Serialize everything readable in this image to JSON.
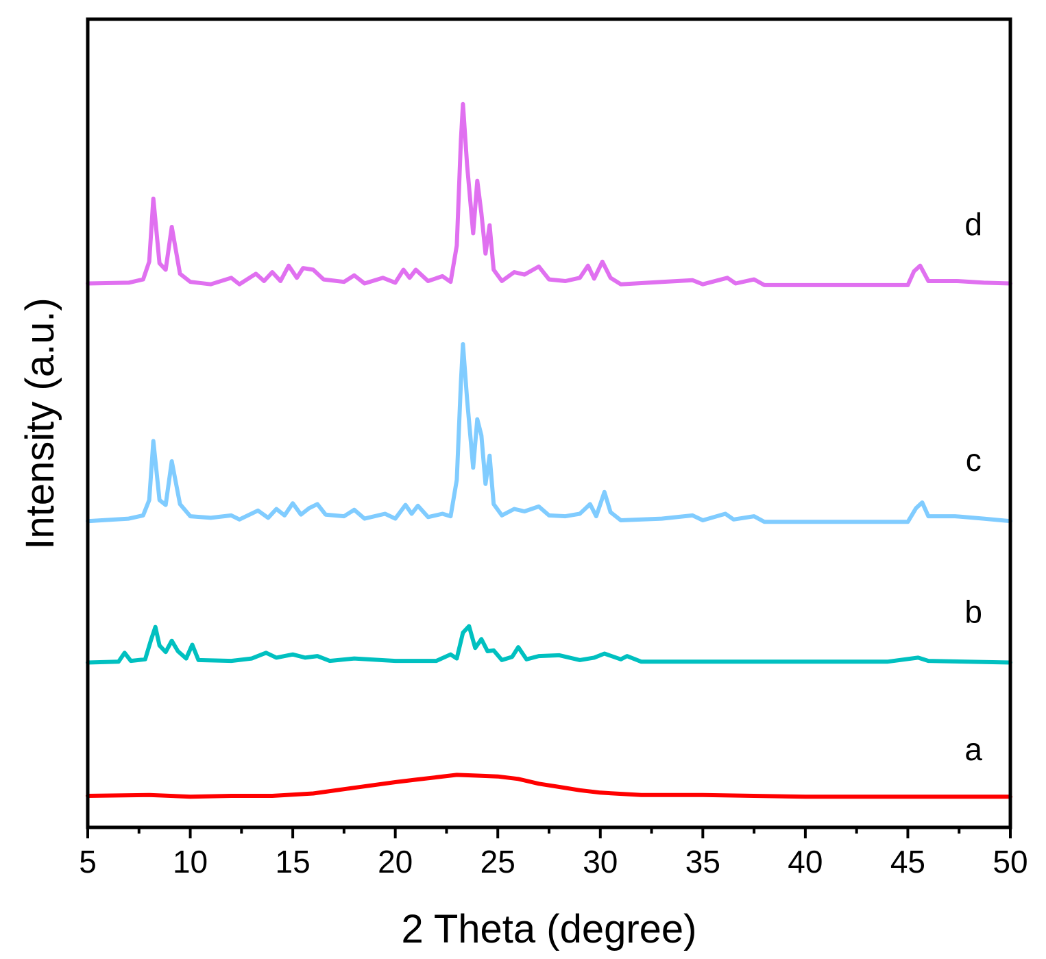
{
  "chart_data": {
    "type": "line",
    "xlabel": "2 Theta (degree)",
    "ylabel": "Intensity (a.u.)",
    "xlim": [
      5,
      50
    ],
    "ylim": [
      0,
      100
    ],
    "x_major_ticks": [
      5,
      10,
      15,
      20,
      25,
      30,
      35,
      40,
      45,
      50
    ],
    "x_tick_labels": [
      "5",
      "10",
      "15",
      "20",
      "25",
      "30",
      "35",
      "40",
      "45",
      "50"
    ],
    "x_minor_ticks": [
      7.5,
      12.5,
      17.5,
      22.5,
      27.5,
      32.5,
      37.5,
      42.5,
      47.5
    ],
    "grid": false,
    "y_tick_labels_shown": false,
    "series": [
      {
        "name": "a",
        "color": "#ff0000",
        "label_x": 48.2,
        "label_y": 8.3,
        "points": [
          [
            5,
            3.9
          ],
          [
            8,
            4.0
          ],
          [
            10,
            3.8
          ],
          [
            12,
            3.9
          ],
          [
            14,
            3.9
          ],
          [
            16,
            4.2
          ],
          [
            18,
            4.9
          ],
          [
            20,
            5.6
          ],
          [
            21,
            5.9
          ],
          [
            22,
            6.2
          ],
          [
            23,
            6.5
          ],
          [
            24,
            6.4
          ],
          [
            25,
            6.3
          ],
          [
            26,
            6.0
          ],
          [
            27,
            5.4
          ],
          [
            28,
            5.0
          ],
          [
            29,
            4.6
          ],
          [
            30,
            4.3
          ],
          [
            32,
            4.0
          ],
          [
            35,
            4.0
          ],
          [
            40,
            3.8
          ],
          [
            45,
            3.8
          ],
          [
            50,
            3.8
          ]
        ]
      },
      {
        "name": "b",
        "color": "#00c0c0",
        "label_x": 48.2,
        "label_y": 25.3,
        "points": [
          [
            5,
            20.4
          ],
          [
            6.5,
            20.5
          ],
          [
            6.8,
            21.6
          ],
          [
            7.1,
            20.6
          ],
          [
            7.8,
            20.8
          ],
          [
            8.1,
            23.3
          ],
          [
            8.3,
            24.8
          ],
          [
            8.5,
            22.5
          ],
          [
            8.8,
            21.7
          ],
          [
            9.1,
            23.1
          ],
          [
            9.4,
            21.8
          ],
          [
            9.8,
            20.9
          ],
          [
            10.1,
            22.6
          ],
          [
            10.4,
            20.7
          ],
          [
            12,
            20.6
          ],
          [
            13,
            20.9
          ],
          [
            13.7,
            21.6
          ],
          [
            14.2,
            21.0
          ],
          [
            15,
            21.4
          ],
          [
            15.6,
            21.0
          ],
          [
            16.2,
            21.2
          ],
          [
            16.8,
            20.6
          ],
          [
            18,
            20.9
          ],
          [
            20,
            20.6
          ],
          [
            22,
            20.6
          ],
          [
            22.7,
            21.4
          ],
          [
            23.0,
            20.9
          ],
          [
            23.3,
            24.1
          ],
          [
            23.6,
            24.9
          ],
          [
            23.9,
            22.2
          ],
          [
            24.2,
            23.3
          ],
          [
            24.5,
            21.8
          ],
          [
            24.8,
            21.9
          ],
          [
            25.2,
            20.7
          ],
          [
            25.7,
            21.1
          ],
          [
            26.0,
            22.3
          ],
          [
            26.4,
            20.8
          ],
          [
            27,
            21.2
          ],
          [
            28,
            21.3
          ],
          [
            29,
            20.7
          ],
          [
            29.7,
            21.0
          ],
          [
            30.2,
            21.5
          ],
          [
            31,
            20.8
          ],
          [
            31.3,
            21.2
          ],
          [
            32,
            20.5
          ],
          [
            40,
            20.5
          ],
          [
            44,
            20.5
          ],
          [
            45.5,
            21.0
          ],
          [
            46,
            20.6
          ],
          [
            50,
            20.4
          ]
        ]
      },
      {
        "name": "c",
        "color": "#80ccff",
        "label_x": 48.2,
        "label_y": 44.1,
        "points": [
          [
            5,
            37.9
          ],
          [
            7,
            38.2
          ],
          [
            7.7,
            38.6
          ],
          [
            8.0,
            40.5
          ],
          [
            8.2,
            47.8
          ],
          [
            8.5,
            40.5
          ],
          [
            8.8,
            39.9
          ],
          [
            9.1,
            45.3
          ],
          [
            9.5,
            40.0
          ],
          [
            10,
            38.5
          ],
          [
            11,
            38.3
          ],
          [
            12,
            38.6
          ],
          [
            12.4,
            38.1
          ],
          [
            13.3,
            39.2
          ],
          [
            13.8,
            38.3
          ],
          [
            14.2,
            39.4
          ],
          [
            14.6,
            38.6
          ],
          [
            15.0,
            40.1
          ],
          [
            15.4,
            38.7
          ],
          [
            15.8,
            39.5
          ],
          [
            16.2,
            40.0
          ],
          [
            16.6,
            38.7
          ],
          [
            17.5,
            38.5
          ],
          [
            18.0,
            39.3
          ],
          [
            18.5,
            38.2
          ],
          [
            19.5,
            38.8
          ],
          [
            20.0,
            38.2
          ],
          [
            20.5,
            39.9
          ],
          [
            20.8,
            38.8
          ],
          [
            21.1,
            39.8
          ],
          [
            21.6,
            38.4
          ],
          [
            22.3,
            38.8
          ],
          [
            22.7,
            38.5
          ],
          [
            23.0,
            43.0
          ],
          [
            23.2,
            55.0
          ],
          [
            23.3,
            59.8
          ],
          [
            23.5,
            53.0
          ],
          [
            23.8,
            44.5
          ],
          [
            24.0,
            50.5
          ],
          [
            24.2,
            48.5
          ],
          [
            24.4,
            42.5
          ],
          [
            24.6,
            46.0
          ],
          [
            24.8,
            40.0
          ],
          [
            25.2,
            38.6
          ],
          [
            25.8,
            39.4
          ],
          [
            26.3,
            39.1
          ],
          [
            27.0,
            39.7
          ],
          [
            27.5,
            38.6
          ],
          [
            28.3,
            38.5
          ],
          [
            29.0,
            38.8
          ],
          [
            29.5,
            40.0
          ],
          [
            29.8,
            38.5
          ],
          [
            30.2,
            41.5
          ],
          [
            30.5,
            39.0
          ],
          [
            31,
            38.0
          ],
          [
            33,
            38.2
          ],
          [
            34.5,
            38.6
          ],
          [
            35,
            38.0
          ],
          [
            36.1,
            38.8
          ],
          [
            36.5,
            38.1
          ],
          [
            37.5,
            38.5
          ],
          [
            38,
            37.8
          ],
          [
            45,
            37.8
          ],
          [
            45.4,
            39.5
          ],
          [
            45.7,
            40.2
          ],
          [
            46,
            38.5
          ],
          [
            47.3,
            38.5
          ],
          [
            48.7,
            38.2
          ],
          [
            50,
            37.9
          ]
        ]
      },
      {
        "name": "d",
        "color": "#e070f0",
        "label_x": 48.2,
        "label_y": 73.3,
        "points": [
          [
            5,
            67.3
          ],
          [
            7,
            67.4
          ],
          [
            7.7,
            67.8
          ],
          [
            8.0,
            70.0
          ],
          [
            8.2,
            77.8
          ],
          [
            8.5,
            69.8
          ],
          [
            8.8,
            69.0
          ],
          [
            9.1,
            74.3
          ],
          [
            9.5,
            68.5
          ],
          [
            10,
            67.5
          ],
          [
            11,
            67.2
          ],
          [
            12.0,
            68.0
          ],
          [
            12.4,
            67.2
          ],
          [
            13.2,
            68.5
          ],
          [
            13.6,
            67.6
          ],
          [
            14.0,
            68.7
          ],
          [
            14.4,
            67.6
          ],
          [
            14.8,
            69.5
          ],
          [
            15.2,
            68.0
          ],
          [
            15.5,
            69.2
          ],
          [
            16.0,
            69.0
          ],
          [
            16.5,
            67.8
          ],
          [
            17.5,
            67.5
          ],
          [
            18.0,
            68.3
          ],
          [
            18.5,
            67.3
          ],
          [
            19.4,
            68.0
          ],
          [
            20.0,
            67.4
          ],
          [
            20.4,
            69.0
          ],
          [
            20.7,
            68.0
          ],
          [
            21.0,
            69.0
          ],
          [
            21.6,
            67.6
          ],
          [
            22.3,
            68.2
          ],
          [
            22.7,
            67.5
          ],
          [
            23.0,
            72.0
          ],
          [
            23.2,
            85.0
          ],
          [
            23.3,
            89.5
          ],
          [
            23.5,
            82.0
          ],
          [
            23.8,
            73.5
          ],
          [
            24.0,
            80.0
          ],
          [
            24.2,
            76.0
          ],
          [
            24.4,
            71.0
          ],
          [
            24.6,
            74.5
          ],
          [
            24.8,
            69.0
          ],
          [
            25.2,
            67.6
          ],
          [
            25.8,
            68.7
          ],
          [
            26.3,
            68.4
          ],
          [
            27.0,
            69.4
          ],
          [
            27.5,
            67.8
          ],
          [
            28.3,
            67.6
          ],
          [
            29.0,
            68.0
          ],
          [
            29.4,
            69.5
          ],
          [
            29.7,
            67.9
          ],
          [
            30.1,
            70.0
          ],
          [
            30.5,
            68.0
          ],
          [
            31,
            67.2
          ],
          [
            33,
            67.5
          ],
          [
            34.5,
            67.7
          ],
          [
            35,
            67.2
          ],
          [
            36.2,
            68.0
          ],
          [
            36.6,
            67.3
          ],
          [
            37.5,
            67.8
          ],
          [
            38,
            67.1
          ],
          [
            45,
            67.1
          ],
          [
            45.3,
            68.8
          ],
          [
            45.6,
            69.5
          ],
          [
            46,
            67.6
          ],
          [
            47.4,
            67.6
          ],
          [
            48.7,
            67.4
          ],
          [
            50,
            67.3
          ]
        ]
      }
    ]
  }
}
